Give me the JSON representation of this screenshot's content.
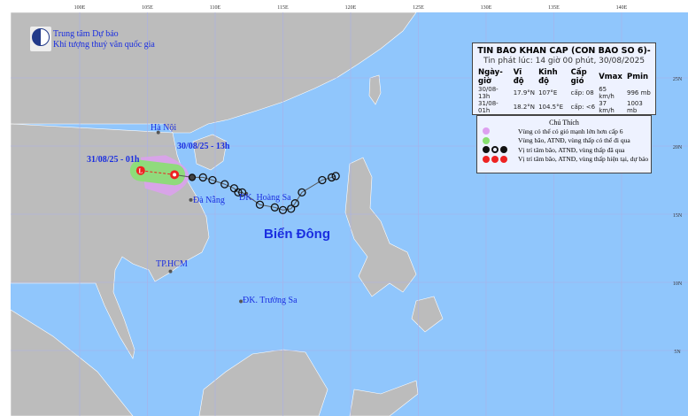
{
  "header": {
    "org_line1": "Trung tâm Dự báo",
    "org_line2": "Khí tượng thuỷ văn quốc gia"
  },
  "axes": {
    "lon_labels": [
      "100E",
      "105E",
      "110E",
      "115E",
      "120E",
      "125E",
      "130E",
      "135E",
      "140E"
    ],
    "lat_labels": [
      "25N",
      "20N",
      "15N",
      "10N",
      "5N"
    ]
  },
  "bulletin": {
    "title": "TIN BAO KHAN CAP (CON BAO SO 6)-",
    "issued": "Tin phát lúc: 14 giờ 00 phút, 30/08/2025",
    "columns": [
      "Ngày-giờ",
      "Vĩ độ",
      "Kinh độ",
      "Cấp gió",
      "Vmax",
      "Pmin"
    ],
    "rows": [
      [
        "30/08-13h",
        "17.9°N",
        "107°E",
        "cấp: 08",
        "65 km/h",
        "996 mb"
      ],
      [
        "31/08-01h",
        "18.2°N",
        "104.5°E",
        "cấp: <6",
        "37 km/h",
        "1003 mb"
      ]
    ]
  },
  "legend": {
    "title": "Chú Thích",
    "items": [
      "Vùng có thể có gió mạnh lớn hơn cấp 6",
      "Vùng bão, ATNĐ, vùng thấp có thể đi qua",
      "Vị trí tâm bão, ATNĐ, vùng thấp đã qua",
      "Vị trí tâm bão, ATNĐ, vùng thấp hiện tại, dự báo"
    ],
    "colors": {
      "strong_wind": "#dda0f0",
      "track_area": "#88e070",
      "past": "#111111",
      "current": "#ee2222"
    }
  },
  "places": {
    "hanoi": "Hà Nội",
    "danang": "Đà Nẵng",
    "hcm": "TP.HCM",
    "hoangsa": "ĐK. Hoàng Sa",
    "truongsa": "ĐK. Trường Sa",
    "sea": "Biển Đông",
    "current_time": "30/08/25 - 13h",
    "forecast_time": "31/08/25 - 01h"
  },
  "track": {
    "past": [
      [
        118.9,
        17.8
      ],
      [
        118.6,
        17.7
      ],
      [
        117.9,
        17.5
      ],
      [
        116.4,
        16.6
      ],
      [
        115.9,
        15.8
      ],
      [
        115.6,
        15.4
      ],
      [
        115.0,
        15.3
      ],
      [
        114.4,
        15.5
      ],
      [
        113.3,
        15.7
      ],
      [
        112.0,
        16.6
      ],
      [
        111.7,
        16.6
      ],
      [
        111.4,
        16.9
      ],
      [
        110.7,
        17.2
      ],
      [
        109.8,
        17.5
      ],
      [
        109.1,
        17.7
      ],
      [
        108.3,
        17.7
      ]
    ],
    "current": [
      107,
      17.9
    ],
    "forecast": [
      104.5,
      18.2
    ]
  },
  "colors": {
    "sea": "#90c6fc",
    "land": "#bcbcbc"
  }
}
